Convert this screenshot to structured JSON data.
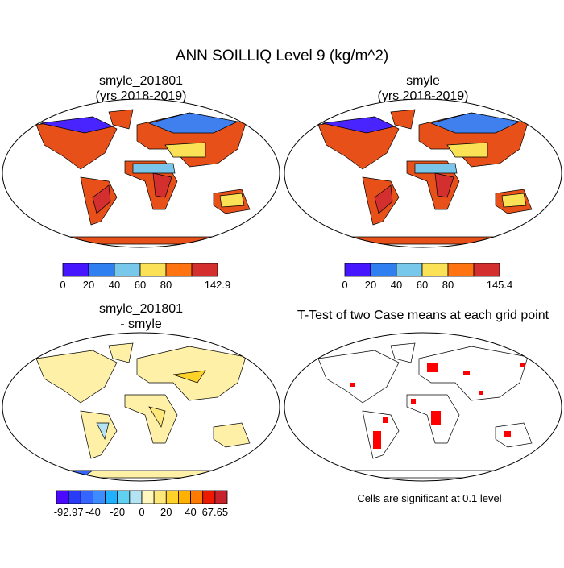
{
  "title": "ANN SOILLIQ Level 9 (kg/m^2)",
  "panels": [
    {
      "title": [
        "smyle_201801",
        "(yrs 2018-2019)"
      ],
      "colorbar": {
        "colors": [
          "#4616ff",
          "#2f7ff0",
          "#78c8ec",
          "#fbe155",
          "#ff7410",
          "#d32f2f"
        ],
        "ticks": [
          0,
          20,
          40,
          60,
          80,
          null,
          142.9
        ]
      }
    },
    {
      "title": [
        "smyle",
        "(yrs 2018-2019)"
      ],
      "colorbar": {
        "colors": [
          "#4616ff",
          "#2f7ff0",
          "#78c8ec",
          "#fbe155",
          "#ff7410",
          "#d32f2f"
        ],
        "ticks": [
          0,
          20,
          40,
          60,
          80,
          null,
          145.4
        ]
      }
    },
    {
      "title": [
        "smyle_201801",
        "- smyle"
      ],
      "colorbar": {
        "colors": [
          "#4b0aff",
          "#2a3bf5",
          "#3565ff",
          "#3c8cff",
          "#1fb0ff",
          "#5fd0f0",
          "#b4e4f4",
          "#fff7bb",
          "#ffe87a",
          "#ffd22a",
          "#ffb000",
          "#ff7a00",
          "#ee1a00",
          "#c8222a"
        ],
        "ticks": [
          null,
          -92.97,
          null,
          -40,
          null,
          -20,
          null,
          0,
          null,
          20,
          null,
          40,
          null,
          67.65,
          null
        ]
      }
    },
    {
      "title": [
        "T-Test of two Case means at each grid point"
      ],
      "note": "Cells are significant at 0.1 level"
    }
  ]
}
